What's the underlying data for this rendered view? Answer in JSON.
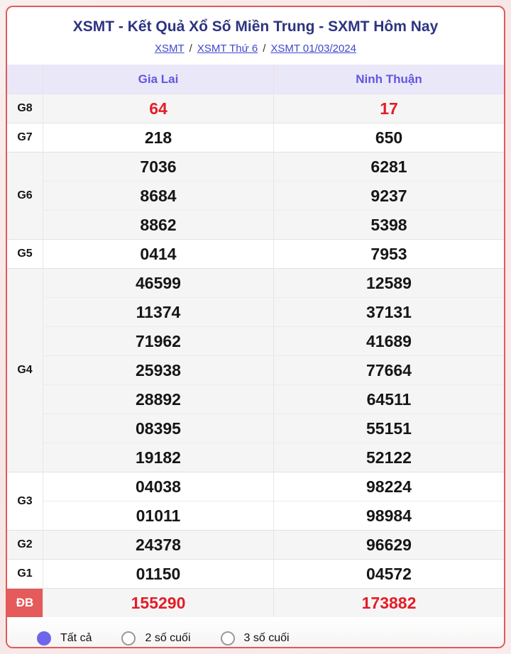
{
  "header": {
    "title": "XSMT - Kết Quả Xổ Số Miền Trung - SXMT Hôm Nay",
    "separator": "/",
    "breadcrumb": [
      {
        "label": "XSMT"
      },
      {
        "label": "XSMT Thứ 6"
      },
      {
        "label": "XSMT 01/03/2024"
      }
    ]
  },
  "table": {
    "columns": [
      "Gia Lai",
      "Ninh Thuận"
    ],
    "rows": [
      {
        "label": "G8",
        "highlight": true,
        "special": false,
        "values": [
          [
            "64"
          ],
          [
            "17"
          ]
        ]
      },
      {
        "label": "G7",
        "highlight": false,
        "special": false,
        "values": [
          [
            "218"
          ],
          [
            "650"
          ]
        ]
      },
      {
        "label": "G6",
        "highlight": false,
        "special": false,
        "values": [
          [
            "7036",
            "8684",
            "8862"
          ],
          [
            "6281",
            "9237",
            "5398"
          ]
        ]
      },
      {
        "label": "G5",
        "highlight": false,
        "special": false,
        "values": [
          [
            "0414"
          ],
          [
            "7953"
          ]
        ]
      },
      {
        "label": "G4",
        "highlight": false,
        "special": false,
        "values": [
          [
            "46599",
            "11374",
            "71962",
            "25938",
            "28892",
            "08395",
            "19182"
          ],
          [
            "12589",
            "37131",
            "41689",
            "77664",
            "64511",
            "55151",
            "52122"
          ]
        ]
      },
      {
        "label": "G3",
        "highlight": false,
        "special": false,
        "values": [
          [
            "04038",
            "01011"
          ],
          [
            "98224",
            "98984"
          ]
        ]
      },
      {
        "label": "G2",
        "highlight": false,
        "special": false,
        "values": [
          [
            "24378"
          ],
          [
            "96629"
          ]
        ]
      },
      {
        "label": "G1",
        "highlight": false,
        "special": false,
        "values": [
          [
            "01150"
          ],
          [
            "04572"
          ]
        ]
      },
      {
        "label": "ĐB",
        "highlight": true,
        "special": true,
        "values": [
          [
            "155290"
          ],
          [
            "173882"
          ]
        ]
      }
    ]
  },
  "filters": {
    "options": [
      {
        "label": "Tất cả",
        "selected": true
      },
      {
        "label": "2 số cuối",
        "selected": false
      },
      {
        "label": "3 số cuối",
        "selected": false
      }
    ]
  },
  "colors": {
    "page_bg": "#f7ebe9",
    "card_border": "#e05a5a",
    "title_text": "#2d3480",
    "link_text": "#3f46cf",
    "column_header_text": "#6156e0",
    "column_header_bg": "#eae8f8",
    "shade_row_bg": "#f5f5f6",
    "highlight_number": "#e31d26",
    "special_label_bg": "#e55a5a",
    "radio_selected": "#6e66ea"
  }
}
